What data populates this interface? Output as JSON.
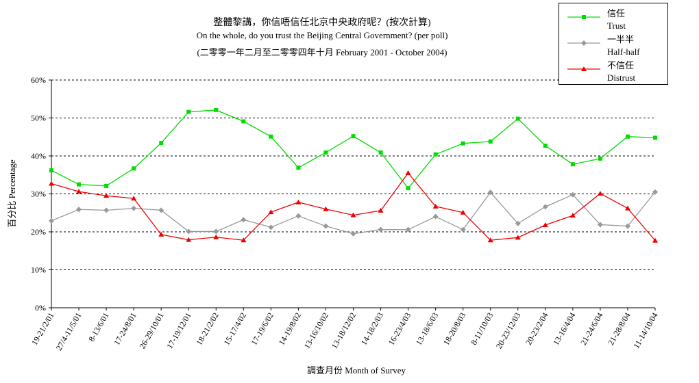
{
  "chart_data": {
    "type": "line",
    "title": "整體黎講，你信唔信任北京中央政府呢？(按次計算)",
    "subtitle": "On the whole, do you trust the Beijing Central Government?  (per poll)",
    "date_range": "(二零零一年二月至二零零四年十月 February 2001 - October 2004)",
    "xlabel": "調查月份 Month of Survey",
    "ylabel": "百分比 Percentage",
    "ylim": [
      0,
      60
    ],
    "y_ticks": [
      "0%",
      "10%",
      "20%",
      "30%",
      "40%",
      "50%",
      "60%"
    ],
    "grid": true,
    "legend_position": "top-right",
    "categories": [
      "19-21/2/01",
      "27/4-11/5/01",
      "8-13/6/01",
      "17-24/8/01",
      "26-29/10/01",
      "17-19/12/01",
      "18-21/2/02",
      "15-17/4/02",
      "17-19/6/02",
      "14-19/8/02",
      "13-16/10/02",
      "13-18/12/02",
      "14-18/2/03",
      "16-23/4/03",
      "13-18/6/03",
      "18-20/8/03",
      "8-11/10/03",
      "20-23/12/03",
      "20-23/2/04",
      "13-16/4/04",
      "21-24/6/04",
      "21-28/8/04",
      "11-14/10/04"
    ],
    "series": [
      {
        "name": "信任",
        "name_en": "Trust",
        "color": "#00dd00",
        "marker": "square",
        "values": [
          36.2,
          32.5,
          32.1,
          36.7,
          43.4,
          51.6,
          52.1,
          49.1,
          45.1,
          36.9,
          40.9,
          45.2,
          40.9,
          31.5,
          40.4,
          43.3,
          43.8,
          49.8,
          42.7,
          37.8,
          39.3,
          45.1,
          44.8
        ]
      },
      {
        "name": "一半半",
        "name_en": "Half-half",
        "color": "#999999",
        "marker": "diamond",
        "values": [
          22.9,
          25.9,
          25.7,
          26.2,
          25.7,
          20.1,
          20.1,
          23.2,
          21.2,
          24.2,
          21.5,
          19.5,
          20.6,
          20.6,
          24.0,
          20.6,
          30.4,
          22.2,
          26.6,
          29.8,
          21.9,
          21.5,
          30.5
        ]
      },
      {
        "name": "不信任",
        "name_en": "Distrust",
        "color": "#ee0000",
        "marker": "triangle",
        "values": [
          32.7,
          30.6,
          29.5,
          28.8,
          19.3,
          17.9,
          18.6,
          17.8,
          25.2,
          27.8,
          26.0,
          24.4,
          25.6,
          35.5,
          26.7,
          25.1,
          17.8,
          18.5,
          21.8,
          24.3,
          30.1,
          26.2,
          17.7
        ]
      }
    ]
  }
}
